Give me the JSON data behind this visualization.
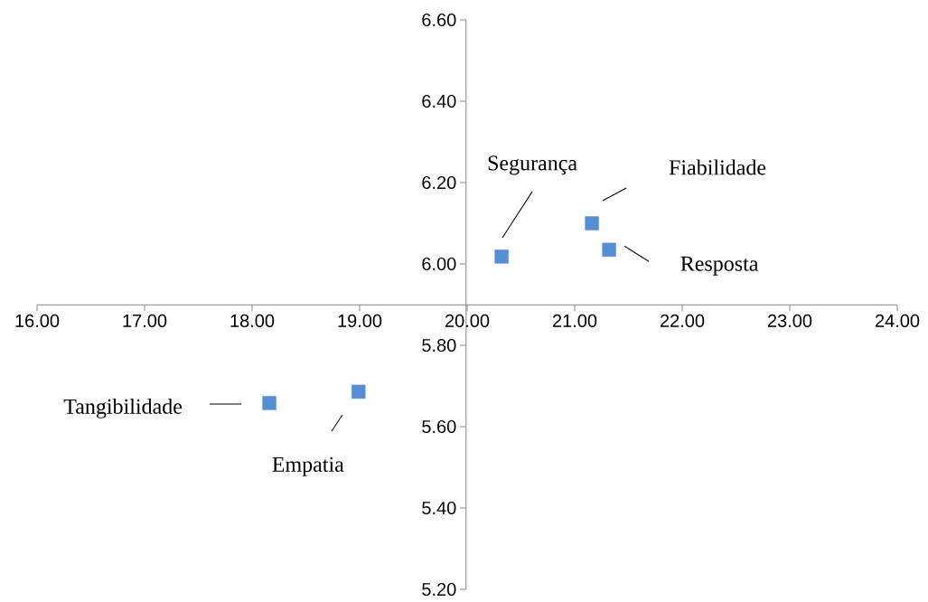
{
  "chart_data": {
    "type": "scatter",
    "marker": "square",
    "color": "#558ed5",
    "x": [
      20.32,
      21.16,
      21.32,
      18.16,
      18.99
    ],
    "values": [
      6.018,
      6.1,
      6.035,
      5.658,
      5.686
    ],
    "xlim": [
      16,
      24
    ],
    "xticks": [
      {
        "value": 16,
        "label": "16.00"
      },
      {
        "value": 17,
        "label": "17.00"
      },
      {
        "value": 18,
        "label": "18.00"
      },
      {
        "value": 19,
        "label": "19.00"
      },
      {
        "value": 20,
        "label": "20.00"
      },
      {
        "value": 21,
        "label": "21.00"
      },
      {
        "value": 22,
        "label": "22.00"
      },
      {
        "value": 23,
        "label": "23.00"
      },
      {
        "value": 24,
        "label": "24.00"
      }
    ],
    "ylim": [
      5.2,
      6.6
    ],
    "yticks": [
      {
        "value": 5.2,
        "label": "5.20"
      },
      {
        "value": 5.4,
        "label": "5.40"
      },
      {
        "value": 5.6,
        "label": "5.60"
      },
      {
        "value": 5.8,
        "label": "5.80"
      },
      {
        "value": 6.0,
        "label": "6.00"
      },
      {
        "value": 6.2,
        "label": "6.20"
      },
      {
        "value": 6.4,
        "label": "6.40"
      },
      {
        "value": 6.6,
        "label": "6.60"
      }
    ],
    "annotations": [
      "Segurança",
      "Fiabilidade",
      "Resposta",
      "Tangibilidade",
      "Empatia"
    ]
  }
}
